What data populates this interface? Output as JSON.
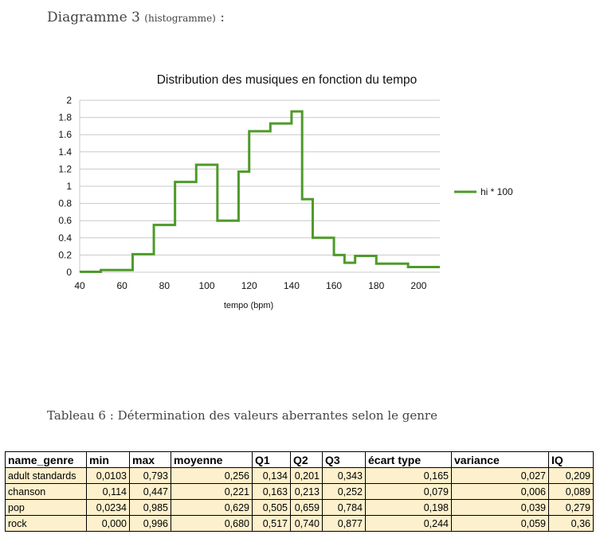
{
  "captions": {
    "figure_main": "Diagramme 3",
    "figure_sub": "(histogramme)",
    "figure_suffix": " :",
    "table": "Tableau 6 : Détermination des valeurs aberrantes selon le genre"
  },
  "chart_data": {
    "type": "line",
    "title": "Distribution des musiques en fonction du tempo",
    "xlabel": "tempo (bpm)",
    "ylabel": "",
    "xlim": [
      40,
      210
    ],
    "ylim": [
      0,
      2
    ],
    "x_ticks": [
      40,
      60,
      80,
      100,
      120,
      140,
      160,
      180,
      200
    ],
    "y_ticks": [
      "0",
      "0.2",
      "0.4",
      "0.6",
      "0.8",
      "1",
      "1.2",
      "1.4",
      "1.6",
      "1.8",
      "2"
    ],
    "grid": true,
    "legend": "right",
    "color": "#4e9a2a",
    "series": [
      {
        "name": "hi * 100",
        "x": [
          40,
          50,
          65,
          75,
          85,
          95,
          105,
          115,
          120,
          130,
          140,
          145,
          150,
          160,
          165,
          170,
          180,
          195,
          210
        ],
        "values": [
          0.005,
          0.025,
          0.21,
          0.55,
          1.05,
          1.25,
          0.6,
          1.17,
          1.64,
          1.73,
          1.87,
          0.85,
          0.4,
          0.2,
          0.11,
          0.19,
          0.1,
          0.06,
          0.06
        ]
      }
    ]
  },
  "table": {
    "headers": [
      "name_genre",
      "min",
      "max",
      "moyenne",
      "Q1",
      "Q2",
      "Q3",
      "écart type",
      "variance",
      "IQ"
    ],
    "rows": [
      [
        "adult standards",
        "0,0103",
        "0,793",
        "0,256",
        "0,134",
        "0,201",
        "0,343",
        "0,165",
        "0,027",
        "0,209"
      ],
      [
        "chanson",
        "0,114",
        "0,447",
        "0,221",
        "0,163",
        "0,213",
        "0,252",
        "0,079",
        "0,006",
        "0,089"
      ],
      [
        "pop",
        "0,0234",
        "0,985",
        "0,629",
        "0,505",
        "0,659",
        "0,784",
        "0,198",
        "0,039",
        "0,279"
      ],
      [
        "rock",
        "0,000",
        "0,996",
        "0,680",
        "0,517",
        "0,740",
        "0,877",
        "0,244",
        "0,059",
        "0,36"
      ]
    ]
  }
}
